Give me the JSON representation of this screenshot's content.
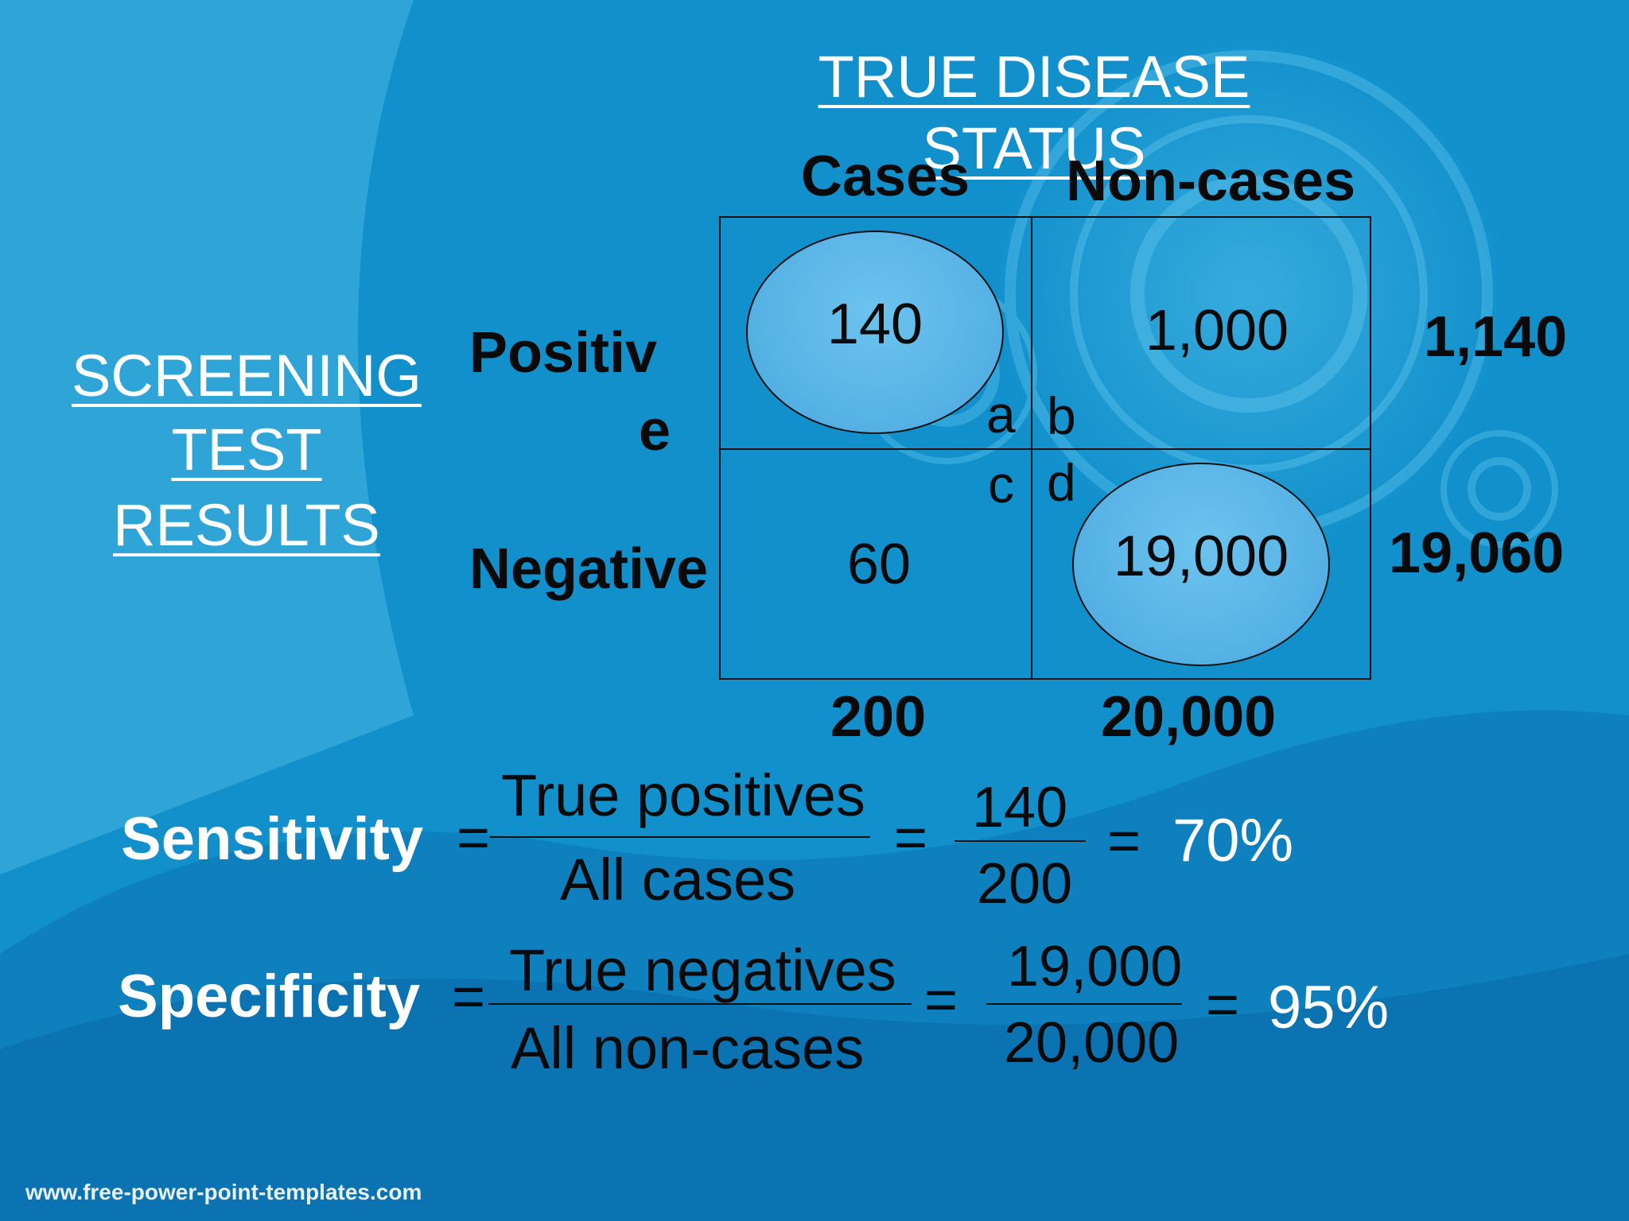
{
  "header": {
    "title_line1": "TRUE DISEASE",
    "title_line2": "STATUS",
    "col_cases": "Cases",
    "col_noncases": "Non-cases"
  },
  "rowheader": {
    "line1": "SCREENING",
    "line2": "TEST",
    "line3": "RESULTS",
    "positive_line1": "Positiv",
    "positive_line2": "e",
    "negative": "Negative"
  },
  "cells": {
    "a_value": "140",
    "b_value": "1,000",
    "c_value": "60",
    "d_value": "19,000",
    "label_a": "a",
    "label_b": "b",
    "label_c": "c",
    "label_d": "d"
  },
  "totals": {
    "row_positive": "1,140",
    "row_negative": "19,060",
    "col_cases": "200",
    "col_noncases": "20,000"
  },
  "formulas": {
    "sensitivity": {
      "label": "Sensitivity",
      "eq1": "=",
      "numerator": "True positives",
      "denominator": "All cases",
      "eq2": "=",
      "num_value": "140",
      "den_value": "200",
      "eq3": "=",
      "result": "70%"
    },
    "specificity": {
      "label": "Specificity",
      "eq1": "=",
      "numerator": "True negatives",
      "denominator": "All non-cases",
      "eq2": "=",
      "num_value": "19,000",
      "den_value": "20,000",
      "eq3": "=",
      "result": "95%"
    }
  },
  "footer": {
    "url": "www.free-power-point-templates.com"
  },
  "colors": {
    "background": "#1392cd",
    "highlight": "#58b3e6",
    "text_dark": "#0a0a0a",
    "text_light": "#ffffff"
  }
}
